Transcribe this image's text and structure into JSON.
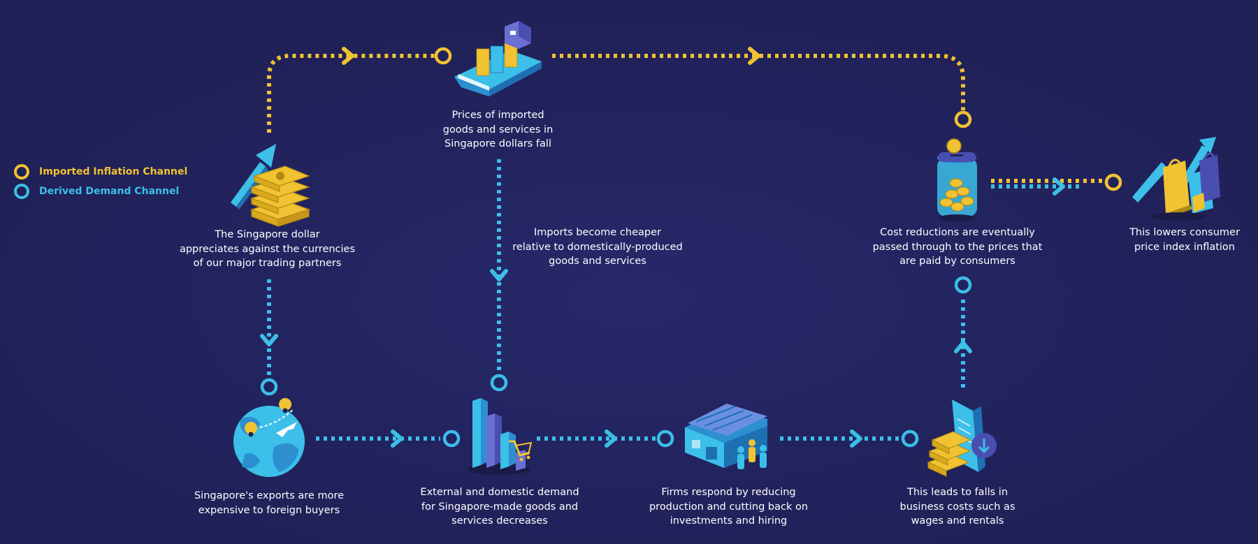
{
  "colors": {
    "background": "#22235a",
    "imported": "#f1c232",
    "derived": "#3cbfe8"
  },
  "legend": {
    "imported_label": "Imported Inflation Channel",
    "derived_label": "Derived Demand Channel"
  },
  "steps": {
    "sgd_appreciates": "The Singapore dollar\nappreciates against the currencies\nof our major trading partners",
    "import_prices_fall": "Prices of imported\ngoods and services in\nSingapore dollars fall",
    "imports_cheaper": "Imports become cheaper\nrelative to domestically-produced\ngoods and services",
    "cost_passthrough": "Cost reductions are eventually\npassed through to the prices that\nare paid by consumers",
    "lower_cpi": "This lowers consumer\nprice index inflation",
    "exports_expensive": "Singapore's exports are more\nexpensive to foreign buyers",
    "demand_decreases": "External and domestic demand\nfor Singapore-made goods and\nservices decreases",
    "firms_respond": "Firms respond by reducing\nproduction and cutting back on\ninvestments and hiring",
    "business_costs_fall": "This leads to falls in\nbusiness costs such as\nwages and rentals"
  },
  "icons": [
    "rising-arrow-money-icon",
    "cargo-ship-icon",
    "coin-jar-icon",
    "shopping-bags-arrow-icon",
    "globe-plane-icon",
    "bar-chart-cart-icon",
    "factory-workers-icon",
    "bill-money-icon"
  ]
}
